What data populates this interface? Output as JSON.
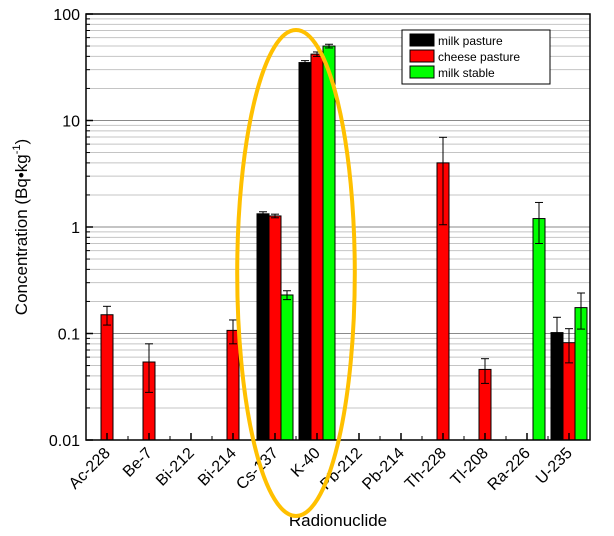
{
  "chart_data": {
    "type": "bar",
    "xlabel": "Radionuclide",
    "ylabel": "Concentration (Bq•kg",
    "ylabel_sup": "-1",
    "ylabel_close": ")",
    "yscale": "log",
    "ylim": [
      0.01,
      100
    ],
    "yticks": [
      {
        "value": 0.01,
        "label": "0.01"
      },
      {
        "value": 0.1,
        "label": "0.1"
      },
      {
        "value": 1,
        "label": "1"
      },
      {
        "value": 10,
        "label": "10"
      },
      {
        "value": 100,
        "label": "100"
      }
    ],
    "categories": [
      "Ac-228",
      "Be-7",
      "Bi-212",
      "Bi-214",
      "Cs-137",
      "K-40",
      "Pb-212",
      "Pb-214",
      "Th-228",
      "Tl-208",
      "Ra-226",
      "U-235"
    ],
    "series": [
      {
        "name": "milk pasture",
        "color": "#000000",
        "values": [
          null,
          null,
          null,
          null,
          1.33,
          35,
          null,
          null,
          null,
          null,
          null,
          0.102
        ],
        "errors": [
          null,
          null,
          null,
          null,
          0.06,
          1.5,
          null,
          null,
          null,
          null,
          null,
          0.04
        ]
      },
      {
        "name": "cheese pasture",
        "color": "#ff0000",
        "values": [
          0.15,
          0.054,
          null,
          0.107,
          1.27,
          42,
          null,
          null,
          4.0,
          0.046,
          null,
          0.082
        ],
        "errors": [
          0.03,
          0.026,
          null,
          0.027,
          0.05,
          2,
          null,
          null,
          2.95,
          0.012,
          null,
          0.029
        ]
      },
      {
        "name": "milk stable",
        "color": "#00ff00",
        "values": [
          null,
          null,
          null,
          null,
          0.23,
          50,
          null,
          null,
          null,
          null,
          1.2,
          0.175
        ],
        "errors": [
          null,
          null,
          null,
          null,
          0.022,
          2,
          null,
          null,
          null,
          null,
          0.5,
          0.065
        ]
      }
    ],
    "legend": "top-right",
    "grid": true,
    "annotation": "orange ellipse highlighting Cs-137 and K-40"
  }
}
